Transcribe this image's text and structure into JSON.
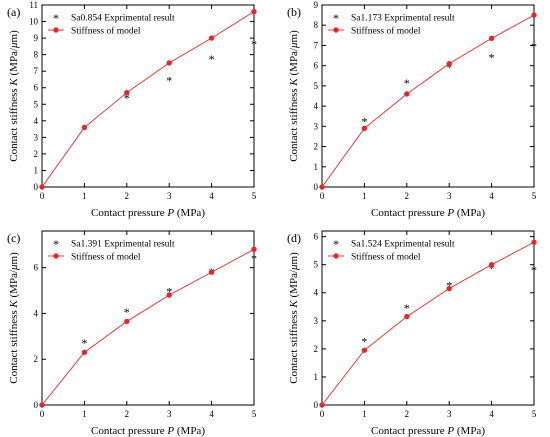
{
  "figure": {
    "panels": [
      "a",
      "b",
      "c",
      "d"
    ]
  },
  "chart_data": [
    {
      "type": "scatter",
      "panel_label": "(a)",
      "xlabel_prefix": "Contact pressure ",
      "xlabel_var": "P",
      "xlabel_unit": " (MPa)",
      "ylabel_prefix": "Contact stiffness ",
      "ylabel_var": "K",
      "ylabel_unit": " (MPa/",
      "ylabel_mu": "μ",
      "ylabel_end": "m)",
      "xlim": [
        0,
        5
      ],
      "ylim": [
        0,
        11
      ],
      "xticks": [
        0,
        1,
        2,
        3,
        4,
        5
      ],
      "yticks": [
        0,
        1,
        2,
        3,
        4,
        5,
        6,
        7,
        8,
        9,
        10,
        11
      ],
      "grid": false,
      "legend_position": "top-left",
      "series": [
        {
          "name": "Sa0.854 Exprimental result",
          "kind": "scatter",
          "marker": "star",
          "color": "#000000",
          "x": [
            1,
            2,
            3,
            4,
            5
          ],
          "y": [
            3.6,
            5.45,
            6.5,
            7.8,
            8.7
          ]
        },
        {
          "name": "Stiffness of model",
          "kind": "line",
          "marker": "circle",
          "color": "#e8262a",
          "x": [
            0,
            1,
            2,
            3,
            4,
            5
          ],
          "y": [
            0,
            3.6,
            5.7,
            7.5,
            9.0,
            10.6
          ]
        }
      ]
    },
    {
      "type": "scatter",
      "panel_label": "(b)",
      "xlabel_prefix": "Contact pressure ",
      "xlabel_var": "P",
      "xlabel_unit": " (MPa)",
      "ylabel_prefix": "Contact stiffness ",
      "ylabel_var": "K",
      "ylabel_unit": " (MPa/",
      "ylabel_mu": "μ",
      "ylabel_end": "m)",
      "xlim": [
        0,
        5
      ],
      "ylim": [
        0,
        9
      ],
      "xticks": [
        0,
        1,
        2,
        3,
        4,
        5
      ],
      "yticks": [
        0,
        1,
        2,
        3,
        4,
        5,
        6,
        7,
        8,
        9
      ],
      "grid": false,
      "legend_position": "top-left",
      "series": [
        {
          "name": "Sa1.173 Exprimental result",
          "kind": "scatter",
          "marker": "star",
          "color": "#000000",
          "x": [
            1,
            2,
            3,
            4,
            5
          ],
          "y": [
            3.3,
            5.2,
            5.95,
            6.45,
            7.0
          ]
        },
        {
          "name": "Stiffness of model",
          "kind": "line",
          "marker": "circle",
          "color": "#e8262a",
          "x": [
            0,
            1,
            2,
            3,
            4,
            5
          ],
          "y": [
            0,
            2.9,
            4.6,
            6.1,
            7.35,
            8.5
          ]
        }
      ]
    },
    {
      "type": "scatter",
      "panel_label": "(c)",
      "xlabel_prefix": "Contact pressure ",
      "xlabel_var": "P",
      "xlabel_unit": " (MPa)",
      "ylabel_prefix": "Contact stiffness ",
      "ylabel_var": "K",
      "ylabel_unit": " (MPa/",
      "ylabel_mu": "μ",
      "ylabel_end": "m)",
      "xlim": [
        0,
        5
      ],
      "ylim": [
        0,
        7.6
      ],
      "xticks": [
        0,
        1,
        2,
        3,
        4,
        5
      ],
      "yticks": [
        0,
        2,
        4,
        6
      ],
      "grid": false,
      "legend_position": "top-left",
      "series": [
        {
          "name": "Sa1.391 Exprimental result",
          "kind": "scatter",
          "marker": "star",
          "color": "#000000",
          "x": [
            1,
            2,
            3,
            4,
            5
          ],
          "y": [
            2.75,
            4.1,
            5.0,
            5.85,
            6.45
          ]
        },
        {
          "name": "Stiffness of model",
          "kind": "line",
          "marker": "circle",
          "color": "#e8262a",
          "x": [
            0,
            1,
            2,
            3,
            4,
            5
          ],
          "y": [
            0,
            2.3,
            3.65,
            4.8,
            5.8,
            6.8
          ]
        }
      ]
    },
    {
      "type": "scatter",
      "panel_label": "(d)",
      "xlabel_prefix": "Contact pressure ",
      "xlabel_var": "P",
      "xlabel_unit": " (MPa)",
      "ylabel_prefix": "Contact stiffness ",
      "ylabel_var": "K",
      "ylabel_unit": " (MPa/",
      "ylabel_mu": "μ",
      "ylabel_end": "m)",
      "xlim": [
        0,
        5
      ],
      "ylim": [
        0,
        6.2
      ],
      "xticks": [
        0,
        1,
        2,
        3,
        4,
        5
      ],
      "yticks": [
        0,
        1,
        2,
        3,
        4,
        5,
        6
      ],
      "grid": false,
      "legend_position": "top-left",
      "series": [
        {
          "name": "Sa1.524 Exprimental result",
          "kind": "scatter",
          "marker": "star",
          "color": "#000000",
          "x": [
            1,
            2,
            3,
            4,
            5
          ],
          "y": [
            2.3,
            3.5,
            4.3,
            4.9,
            4.85
          ]
        },
        {
          "name": "Stiffness of model",
          "kind": "line",
          "marker": "circle",
          "color": "#e8262a",
          "x": [
            0,
            1,
            2,
            3,
            4,
            5
          ],
          "y": [
            0,
            1.95,
            3.15,
            4.15,
            5.0,
            5.8
          ]
        }
      ]
    }
  ]
}
